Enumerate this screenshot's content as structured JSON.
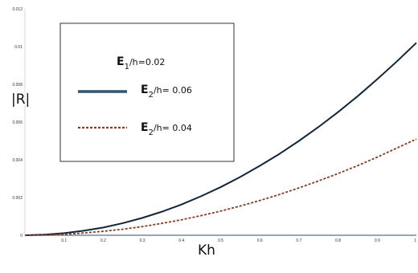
{
  "chart_data": {
    "type": "line",
    "title": "",
    "xlabel": "Kh",
    "ylabel": "|R|",
    "xlim": [
      0,
      1
    ],
    "ylim": [
      0,
      0.012
    ],
    "x_ticks": [
      0.1,
      0.2,
      0.3,
      0.4,
      0.5,
      0.6,
      0.7,
      0.8,
      0.9,
      1
    ],
    "x_tick_labels": [
      "0.1",
      "0.2",
      "0.3",
      "0.4",
      "0.5",
      "0.6",
      "0.7",
      "0.8",
      "0.9",
      "1"
    ],
    "y_ticks": [
      0,
      0.002,
      0.004,
      0.006,
      0.008,
      0.01,
      0.012
    ],
    "y_tick_labels": [
      "0",
      "0.002",
      "0.004",
      "0.006",
      "0.008",
      "0.01",
      "0.012"
    ],
    "grid": false,
    "legend_placement": "top-left",
    "legend": {
      "heading_main": "E",
      "heading_sub": "1",
      "heading_rest": "/h=0.02"
    },
    "series": [
      {
        "label_main": "E",
        "label_sub": "2",
        "label_rest": "/h= 0.06",
        "style": "solid",
        "color": "#10263a",
        "x": [
          0,
          0.05,
          0.1,
          0.15,
          0.2,
          0.25,
          0.3,
          0.35,
          0.4,
          0.45,
          0.5,
          0.55,
          0.6,
          0.65,
          0.7,
          0.75,
          0.8,
          0.85,
          0.9,
          0.95,
          1
        ],
        "y": [
          0,
          3e-05,
          0.00011,
          0.00024,
          0.00041,
          0.00064,
          0.00092,
          0.00125,
          0.00163,
          0.00207,
          0.00255,
          0.00309,
          0.00368,
          0.00431,
          0.005,
          0.00574,
          0.00653,
          0.00737,
          0.00827,
          0.00921,
          0.0102
        ]
      },
      {
        "label_main": "E",
        "label_sub": "2",
        "label_rest": "/h= 0.04",
        "style": "dashed",
        "color": "#8a3a1e",
        "x": [
          0,
          0.05,
          0.1,
          0.15,
          0.2,
          0.25,
          0.3,
          0.35,
          0.4,
          0.45,
          0.5,
          0.55,
          0.6,
          0.65,
          0.7,
          0.75,
          0.8,
          0.85,
          0.9,
          0.95,
          1
        ],
        "y": [
          0,
          1e-05,
          5e-05,
          0.00012,
          0.00021,
          0.00032,
          0.00046,
          0.00063,
          0.00082,
          0.00104,
          0.00128,
          0.00155,
          0.00184,
          0.00216,
          0.00251,
          0.00288,
          0.00327,
          0.00369,
          0.00414,
          0.00462,
          0.0051
        ]
      }
    ]
  }
}
